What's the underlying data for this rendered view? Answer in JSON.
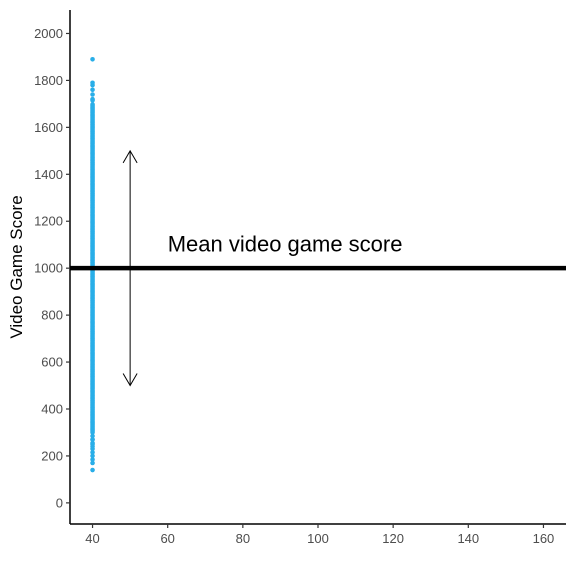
{
  "chart_data": {
    "type": "scatter",
    "xlabel": "",
    "ylabel": "Video Game Score",
    "xlim": [
      34,
      166
    ],
    "ylim": [
      -90,
      2100
    ],
    "x_ticks": [
      "40",
      "60",
      "80",
      "100",
      "120",
      "140",
      "160"
    ],
    "y_ticks": [
      "0",
      "200",
      "400",
      "600",
      "800",
      "1000",
      "1200",
      "1400",
      "1600",
      "1800",
      "2000"
    ],
    "grid": false,
    "points": {
      "x": 40,
      "y_min": 140,
      "y_max": 1890,
      "dense_min": 300,
      "dense_max": 1700,
      "extremes": [
        140,
        170,
        185,
        200,
        215,
        230,
        250,
        270,
        1720,
        1740,
        1760,
        1780,
        1790,
        1890
      ],
      "color": "#29aee8"
    },
    "reference_line": {
      "y": 1000,
      "color": "#000000"
    },
    "arrow": {
      "x": 50,
      "y_from": 500,
      "y_to": 1500
    },
    "annotation": {
      "text": "Mean video game score",
      "x": 60,
      "y": 1070
    }
  }
}
